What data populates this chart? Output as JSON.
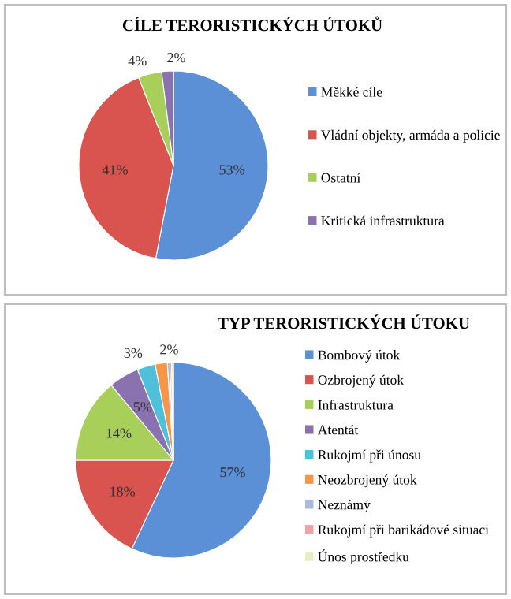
{
  "chart_data": [
    {
      "type": "pie",
      "title": "CÍLE TERORISTICKÝCH ÚTOKŮ",
      "categories": [
        "Měkké cíle",
        "Vládní objekty, armáda a policie",
        "Ostatní",
        "Kritická infrastruktura"
      ],
      "values": [
        53,
        41,
        4,
        2
      ],
      "value_labels": [
        "53%",
        "41%",
        "4%",
        "2%"
      ],
      "colors": [
        "#5b8fd6",
        "#d9534f",
        "#a8cf5a",
        "#8a72b0"
      ],
      "legend": "right"
    },
    {
      "type": "pie",
      "title": "TYP TERORISTICKÝCH ÚTOKU",
      "categories": [
        "Bombový útok",
        "Ozbrojený útok",
        "Infrastruktura",
        "Atentát",
        "Rukojmí při únosu",
        "Neozbrojený útok",
        "Neznámý",
        "Rukojmí při barikádové situaci",
        "Únos prostředku"
      ],
      "values": [
        57,
        18,
        14,
        5,
        3,
        2,
        0.4,
        0.3,
        0.3
      ],
      "value_labels": [
        "57%",
        "18%",
        "14%",
        "5%",
        "3%",
        "2%",
        null,
        null,
        null
      ],
      "colors": [
        "#5b8fd6",
        "#d9534f",
        "#a8cf5a",
        "#8a72b0",
        "#4fc0dc",
        "#f79646",
        "#a9bce0",
        "#f2a3a1",
        "#e6efc4"
      ],
      "legend": "right"
    }
  ]
}
